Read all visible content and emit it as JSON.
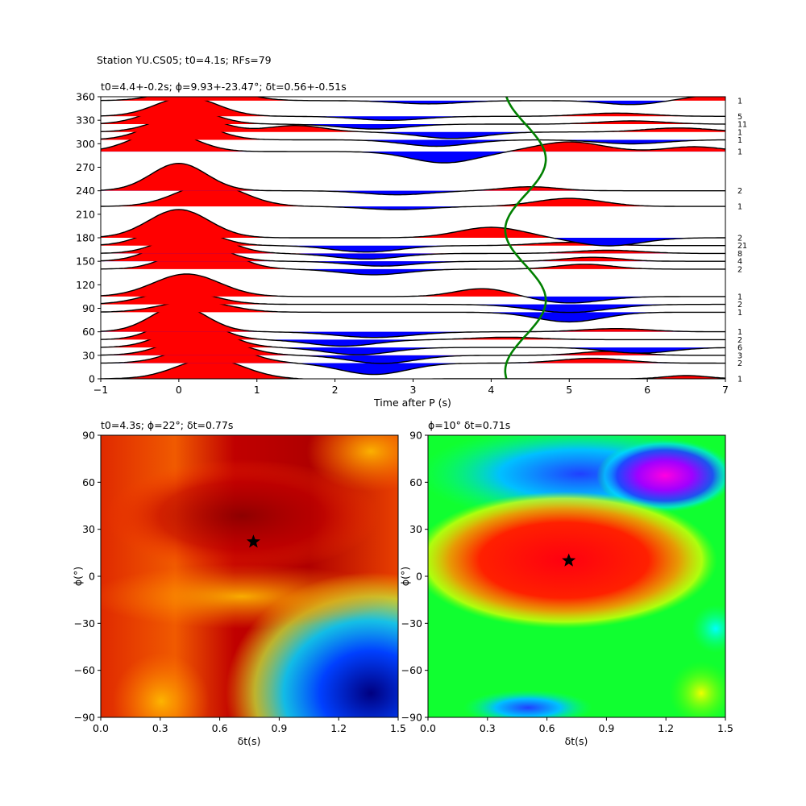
{
  "suptitle": "Station YU.CS05; t0=4.1s; RFs=79",
  "chart_data": [
    {
      "id": "rf-stack",
      "type": "line",
      "title": "t0=4.4+-0.2s; ϕ=9.93+-23.47°; δt=0.56+-0.51s",
      "xlabel": "Time after P (s)",
      "ylabel": "",
      "xlim": [
        -1,
        7
      ],
      "ylim": [
        0,
        360
      ],
      "xticks": [
        "−1",
        "0",
        "1",
        "2",
        "3",
        "4",
        "5",
        "6",
        "7"
      ],
      "yticks": [
        "0",
        "30",
        "60",
        "90",
        "120",
        "150",
        "180",
        "210",
        "240",
        "270",
        "300",
        "330",
        "360"
      ],
      "fill_positive": "#ff0000",
      "fill_negative": "#0000ff",
      "curve_color": "#008000",
      "traces": [
        {
          "baz": 0,
          "count": "1",
          "pulses": [
            [
              0.4,
              0.6,
              25
            ],
            [
              2.3,
              0.5,
              -5
            ],
            [
              6.5,
              0.4,
              4
            ]
          ]
        },
        {
          "baz": 20,
          "count": "2",
          "pulses": [
            [
              0.4,
              0.6,
              26
            ],
            [
              2.5,
              0.6,
              -14
            ],
            [
              5.3,
              0.6,
              6
            ]
          ]
        },
        {
          "baz": 30,
          "count": "3",
          "pulses": [
            [
              0.3,
              0.6,
              27
            ],
            [
              2.6,
              0.6,
              -10
            ],
            [
              5.5,
              0.5,
              5
            ]
          ]
        },
        {
          "baz": 40,
          "count": "6",
          "pulses": [
            [
              0.2,
              0.55,
              29
            ],
            [
              2.3,
              0.6,
              -9
            ],
            [
              5.9,
              0.6,
              -7
            ]
          ]
        },
        {
          "baz": 50,
          "count": "2",
          "pulses": [
            [
              0.1,
              0.5,
              30
            ],
            [
              2.1,
              0.6,
              -8
            ],
            [
              4.2,
              0.6,
              3
            ]
          ]
        },
        {
          "baz": 60,
          "count": "1",
          "pulses": [
            [
              0.0,
              0.5,
              32
            ],
            [
              2.5,
              0.7,
              -7
            ],
            [
              5.6,
              0.6,
              4
            ]
          ]
        },
        {
          "baz": 85,
          "count": "1",
          "pulses": [
            [
              0.2,
              0.6,
              14
            ],
            [
              5.0,
              0.6,
              -12
            ]
          ]
        },
        {
          "baz": 95,
          "count": "2",
          "pulses": [
            [
              0.0,
              0.6,
              17
            ],
            [
              5.0,
              0.7,
              -10
            ]
          ]
        },
        {
          "baz": 105,
          "count": "1",
          "pulses": [
            [
              0.1,
              0.6,
              28
            ],
            [
              3.9,
              0.5,
              10
            ],
            [
              5.0,
              0.6,
              -8
            ]
          ]
        },
        {
          "baz": 140,
          "count": "2",
          "pulses": [
            [
              0.3,
              0.55,
              31
            ],
            [
              2.5,
              0.6,
              -7
            ],
            [
              5.2,
              0.5,
              6
            ]
          ]
        },
        {
          "baz": 150,
          "count": "4",
          "pulses": [
            [
              0.1,
              0.55,
              30
            ],
            [
              2.6,
              0.6,
              -6
            ],
            [
              5.3,
              0.5,
              5
            ]
          ]
        },
        {
          "baz": 160,
          "count": "8",
          "pulses": [
            [
              0.2,
              0.55,
              28
            ],
            [
              2.4,
              0.6,
              -7
            ],
            [
              5.5,
              0.6,
              4
            ]
          ]
        },
        {
          "baz": 170,
          "count": "21",
          "pulses": [
            [
              0.0,
              0.55,
              27
            ],
            [
              2.4,
              0.6,
              -8
            ],
            [
              5.0,
              0.6,
              4
            ]
          ]
        },
        {
          "baz": 180,
          "count": "2",
          "pulses": [
            [
              0.0,
              0.55,
              35
            ],
            [
              4.0,
              0.6,
              13
            ],
            [
              5.5,
              0.6,
              -10
            ]
          ]
        },
        {
          "baz": 220,
          "count": "1",
          "pulses": [
            [
              0.4,
              0.6,
              28
            ],
            [
              2.8,
              0.6,
              -4
            ],
            [
              5.0,
              0.6,
              10
            ]
          ]
        },
        {
          "baz": 240,
          "count": "2",
          "pulses": [
            [
              0.0,
              0.5,
              34
            ],
            [
              2.8,
              0.6,
              -5
            ],
            [
              4.5,
              0.5,
              5
            ]
          ]
        },
        {
          "baz": 290,
          "count": "1",
          "pulses": [
            [
              -0.2,
              0.55,
              26
            ],
            [
              3.4,
              0.6,
              -14
            ],
            [
              5.0,
              0.6,
              12
            ],
            [
              6.6,
              0.5,
              6
            ]
          ]
        },
        {
          "baz": 305,
          "count": "1",
          "pulses": [
            [
              0.0,
              0.55,
              27
            ],
            [
              3.3,
              0.6,
              -8
            ],
            [
              5.8,
              0.6,
              -5
            ]
          ]
        },
        {
          "baz": 315,
          "count": "1",
          "pulses": [
            [
              0.1,
              0.55,
              22
            ],
            [
              1.5,
              0.5,
              8
            ],
            [
              3.5,
              0.6,
              -8
            ],
            [
              6.4,
              0.6,
              5
            ]
          ]
        },
        {
          "baz": 325,
          "count": "11",
          "pulses": [
            [
              0.0,
              0.55,
              23
            ],
            [
              2.5,
              0.6,
              -6
            ],
            [
              5.8,
              0.6,
              4
            ]
          ]
        },
        {
          "baz": 335,
          "count": "5",
          "pulses": [
            [
              0.1,
              0.55,
              24
            ],
            [
              2.7,
              0.6,
              -5
            ],
            [
              5.6,
              0.6,
              4
            ]
          ]
        },
        {
          "baz": 355,
          "count": "1",
          "pulses": [
            [
              0.3,
              0.6,
              20
            ],
            [
              3.2,
              0.6,
              -4
            ],
            [
              5.8,
              0.5,
              -5
            ],
            [
              7.0,
              0.6,
              8
            ]
          ]
        }
      ]
    },
    {
      "id": "grid-left",
      "type": "heatmap",
      "title": "t0=4.3s; ϕ=22°; δt=0.77s",
      "xlabel": "δt(s)",
      "ylabel": "ϕ(°)",
      "xlim": [
        0,
        1.5
      ],
      "ylim": [
        -90,
        90
      ],
      "xticks": [
        "0.0",
        "0.3",
        "0.6",
        "0.9",
        "1.2",
        "1.5"
      ],
      "yticks": [
        "−90",
        "−60",
        "−30",
        "0",
        "30",
        "60",
        "90"
      ],
      "colormap": "jet",
      "marker": {
        "dt": 0.77,
        "phi": 22
      }
    },
    {
      "id": "grid-right",
      "type": "heatmap",
      "title": "ϕ=10° δt=0.71s",
      "xlabel": "δt(s)",
      "ylabel": "ϕ(°)",
      "xlim": [
        0,
        1.5
      ],
      "ylim": [
        -90,
        90
      ],
      "xticks": [
        "0.0",
        "0.3",
        "0.6",
        "0.9",
        "1.2",
        "1.5"
      ],
      "yticks": [
        "−90",
        "−60",
        "−30",
        "0",
        "30",
        "60",
        "90"
      ],
      "colormap": "hsv",
      "marker": {
        "dt": 0.71,
        "phi": 10
      }
    }
  ]
}
